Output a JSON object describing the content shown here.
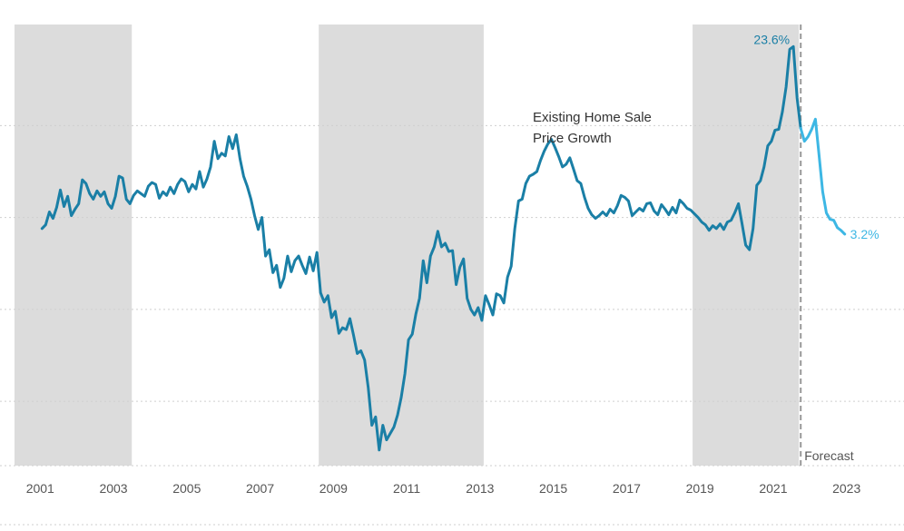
{
  "chart_data": {
    "type": "line",
    "title": "",
    "xlabel": "",
    "ylabel": "",
    "series_label_lines": [
      "Existing Home Sale",
      "Price Growth"
    ],
    "xlim": [
      2000.3,
      2023.8
    ],
    "ylim": [
      -22,
      26
    ],
    "y_gridlines": [
      -15,
      -5,
      5,
      15
    ],
    "x_ticks": [
      2001,
      2003,
      2005,
      2007,
      2009,
      2011,
      2013,
      2015,
      2017,
      2019,
      2021,
      2023
    ],
    "x_tick_labels": [
      "2001",
      "2003",
      "2005",
      "2007",
      "2009",
      "2011",
      "2013",
      "2015",
      "2017",
      "2019",
      "2021",
      "2023"
    ],
    "shaded_periods": [
      {
        "start": 2000.3,
        "end": 2003.5
      },
      {
        "start": 2008.6,
        "end": 2013.1
      },
      {
        "start": 2018.8,
        "end": 2021.7
      }
    ],
    "forecast_start": 2021.75,
    "forecast_label": "Forecast",
    "colors": {
      "actual": "#1a7fa6",
      "forecast": "#3db7e4",
      "shade": "#dcdcdc",
      "grid": "#cfcfcf",
      "forecast_line": "#999999"
    },
    "annotations": [
      {
        "text": "23.6%",
        "x": 2021.55,
        "y": 23.6,
        "color": "#1a7fa6"
      },
      {
        "text": "3.2%",
        "x": 2022.95,
        "y": 3.2,
        "color": "#3db7e4"
      }
    ],
    "series": [
      {
        "values": [
          [
            2001.05,
            3.8
          ],
          [
            2001.15,
            4.2
          ],
          [
            2001.25,
            5.6
          ],
          [
            2001.35,
            4.9
          ],
          [
            2001.45,
            6.1
          ],
          [
            2001.55,
            8.0
          ],
          [
            2001.65,
            6.2
          ],
          [
            2001.75,
            7.3
          ],
          [
            2001.85,
            5.2
          ],
          [
            2001.95,
            5.9
          ],
          [
            2002.05,
            6.5
          ],
          [
            2002.15,
            9.1
          ],
          [
            2002.25,
            8.7
          ],
          [
            2002.35,
            7.6
          ],
          [
            2002.45,
            7.0
          ],
          [
            2002.55,
            7.9
          ],
          [
            2002.65,
            7.3
          ],
          [
            2002.75,
            7.8
          ],
          [
            2002.85,
            6.5
          ],
          [
            2002.95,
            6.0
          ],
          [
            2003.05,
            7.3
          ],
          [
            2003.15,
            9.5
          ],
          [
            2003.25,
            9.3
          ],
          [
            2003.35,
            7.0
          ],
          [
            2003.45,
            6.5
          ],
          [
            2003.55,
            7.4
          ],
          [
            2003.65,
            7.9
          ],
          [
            2003.75,
            7.6
          ],
          [
            2003.85,
            7.3
          ],
          [
            2003.95,
            8.4
          ],
          [
            2004.05,
            8.8
          ],
          [
            2004.15,
            8.6
          ],
          [
            2004.25,
            7.1
          ],
          [
            2004.35,
            7.8
          ],
          [
            2004.45,
            7.4
          ],
          [
            2004.55,
            8.3
          ],
          [
            2004.65,
            7.6
          ],
          [
            2004.75,
            8.6
          ],
          [
            2004.85,
            9.2
          ],
          [
            2004.95,
            8.9
          ],
          [
            2005.05,
            7.8
          ],
          [
            2005.15,
            8.6
          ],
          [
            2005.25,
            8.1
          ],
          [
            2005.35,
            10.0
          ],
          [
            2005.45,
            8.3
          ],
          [
            2005.55,
            9.2
          ],
          [
            2005.65,
            10.5
          ],
          [
            2005.75,
            13.3
          ],
          [
            2005.85,
            11.4
          ],
          [
            2005.95,
            12.0
          ],
          [
            2006.05,
            11.7
          ],
          [
            2006.15,
            13.8
          ],
          [
            2006.25,
            12.5
          ],
          [
            2006.35,
            14.0
          ],
          [
            2006.45,
            11.4
          ],
          [
            2006.55,
            9.5
          ],
          [
            2006.65,
            8.4
          ],
          [
            2006.75,
            7.0
          ],
          [
            2006.85,
            5.2
          ],
          [
            2006.95,
            3.7
          ],
          [
            2007.05,
            5.0
          ],
          [
            2007.15,
            0.8
          ],
          [
            2007.25,
            1.5
          ],
          [
            2007.35,
            -1.0
          ],
          [
            2007.45,
            -0.2
          ],
          [
            2007.55,
            -2.6
          ],
          [
            2007.65,
            -1.6
          ],
          [
            2007.75,
            0.8
          ],
          [
            2007.85,
            -0.9
          ],
          [
            2007.95,
            0.3
          ],
          [
            2008.05,
            0.8
          ],
          [
            2008.15,
            -0.2
          ],
          [
            2008.25,
            -1.1
          ],
          [
            2008.35,
            0.7
          ],
          [
            2008.45,
            -0.8
          ],
          [
            2008.55,
            1.2
          ],
          [
            2008.65,
            -3.2
          ],
          [
            2008.75,
            -4.2
          ],
          [
            2008.85,
            -3.5
          ],
          [
            2008.95,
            -5.9
          ],
          [
            2009.05,
            -5.2
          ],
          [
            2009.15,
            -7.6
          ],
          [
            2009.25,
            -7.0
          ],
          [
            2009.35,
            -7.2
          ],
          [
            2009.45,
            -6.0
          ],
          [
            2009.55,
            -7.8
          ],
          [
            2009.65,
            -9.8
          ],
          [
            2009.75,
            -9.5
          ],
          [
            2009.85,
            -10.5
          ],
          [
            2009.95,
            -13.5
          ],
          [
            2010.05,
            -17.6
          ],
          [
            2010.15,
            -16.7
          ],
          [
            2010.25,
            -20.3
          ],
          [
            2010.35,
            -17.6
          ],
          [
            2010.45,
            -19.2
          ],
          [
            2010.55,
            -18.5
          ],
          [
            2010.65,
            -17.8
          ],
          [
            2010.75,
            -16.5
          ],
          [
            2010.85,
            -14.6
          ],
          [
            2010.95,
            -12.0
          ],
          [
            2011.05,
            -8.3
          ],
          [
            2011.15,
            -7.7
          ],
          [
            2011.25,
            -5.5
          ],
          [
            2011.35,
            -3.8
          ],
          [
            2011.45,
            0.3
          ],
          [
            2011.55,
            -2.1
          ],
          [
            2011.65,
            0.8
          ],
          [
            2011.75,
            1.8
          ],
          [
            2011.85,
            3.5
          ],
          [
            2011.95,
            1.8
          ],
          [
            2012.05,
            2.2
          ],
          [
            2012.15,
            1.3
          ],
          [
            2012.25,
            1.4
          ],
          [
            2012.35,
            -2.3
          ],
          [
            2012.45,
            -0.4
          ],
          [
            2012.55,
            0.5
          ],
          [
            2012.65,
            -3.8
          ],
          [
            2012.75,
            -5.0
          ],
          [
            2012.85,
            -5.6
          ],
          [
            2012.95,
            -4.8
          ],
          [
            2013.05,
            -6.2
          ],
          [
            2013.15,
            -3.5
          ],
          [
            2013.25,
            -4.5
          ],
          [
            2013.35,
            -5.6
          ],
          [
            2013.45,
            -3.3
          ],
          [
            2013.55,
            -3.5
          ],
          [
            2013.65,
            -4.3
          ],
          [
            2013.75,
            -1.5
          ],
          [
            2013.85,
            -0.3
          ],
          [
            2013.95,
            3.8
          ],
          [
            2014.05,
            6.8
          ],
          [
            2014.15,
            7.0
          ],
          [
            2014.25,
            8.7
          ],
          [
            2014.35,
            9.5
          ],
          [
            2014.45,
            9.7
          ],
          [
            2014.55,
            10.0
          ],
          [
            2014.65,
            11.2
          ],
          [
            2014.75,
            12.2
          ],
          [
            2014.85,
            13.0
          ],
          [
            2014.95,
            13.5
          ],
          [
            2015.05,
            12.6
          ],
          [
            2015.15,
            11.6
          ],
          [
            2015.25,
            10.5
          ],
          [
            2015.35,
            10.8
          ],
          [
            2015.45,
            11.5
          ],
          [
            2015.55,
            10.3
          ],
          [
            2015.65,
            9.0
          ],
          [
            2015.75,
            8.7
          ],
          [
            2015.85,
            7.2
          ],
          [
            2015.95,
            6.0
          ],
          [
            2016.05,
            5.3
          ],
          [
            2016.15,
            4.9
          ],
          [
            2016.25,
            5.2
          ],
          [
            2016.35,
            5.6
          ],
          [
            2016.45,
            5.2
          ],
          [
            2016.55,
            5.9
          ],
          [
            2016.65,
            5.5
          ],
          [
            2016.75,
            6.3
          ],
          [
            2016.85,
            7.4
          ],
          [
            2016.95,
            7.2
          ],
          [
            2017.05,
            6.8
          ],
          [
            2017.15,
            5.2
          ],
          [
            2017.25,
            5.6
          ],
          [
            2017.35,
            6.0
          ],
          [
            2017.45,
            5.7
          ],
          [
            2017.55,
            6.5
          ],
          [
            2017.65,
            6.6
          ],
          [
            2017.75,
            5.7
          ],
          [
            2017.85,
            5.3
          ],
          [
            2017.95,
            6.4
          ],
          [
            2018.05,
            5.9
          ],
          [
            2018.15,
            5.3
          ],
          [
            2018.25,
            6.1
          ],
          [
            2018.35,
            5.5
          ],
          [
            2018.45,
            6.9
          ],
          [
            2018.55,
            6.5
          ],
          [
            2018.65,
            6.0
          ],
          [
            2018.75,
            5.8
          ],
          [
            2018.85,
            5.4
          ],
          [
            2018.95,
            5.0
          ],
          [
            2019.05,
            4.5
          ],
          [
            2019.15,
            4.2
          ],
          [
            2019.25,
            3.6
          ],
          [
            2019.35,
            4.1
          ],
          [
            2019.45,
            3.8
          ],
          [
            2019.55,
            4.3
          ],
          [
            2019.65,
            3.7
          ],
          [
            2019.75,
            4.5
          ],
          [
            2019.85,
            4.7
          ],
          [
            2019.95,
            5.5
          ],
          [
            2020.05,
            6.5
          ],
          [
            2020.15,
            4.3
          ],
          [
            2020.25,
            2.0
          ],
          [
            2020.35,
            1.5
          ],
          [
            2020.45,
            3.8
          ],
          [
            2020.55,
            8.5
          ],
          [
            2020.65,
            9.0
          ],
          [
            2020.75,
            10.5
          ],
          [
            2020.85,
            12.8
          ],
          [
            2020.95,
            13.3
          ],
          [
            2021.05,
            14.5
          ],
          [
            2021.15,
            14.6
          ],
          [
            2021.25,
            16.5
          ],
          [
            2021.35,
            19.2
          ],
          [
            2021.45,
            23.3
          ],
          [
            2021.55,
            23.6
          ],
          [
            2021.65,
            18.0
          ],
          [
            2021.75,
            14.7
          ]
        ]
      },
      {
        "values": [
          [
            2021.75,
            14.7
          ],
          [
            2021.85,
            13.3
          ],
          [
            2021.95,
            13.8
          ],
          [
            2022.05,
            14.6
          ],
          [
            2022.15,
            15.7
          ],
          [
            2022.25,
            11.8
          ],
          [
            2022.35,
            7.8
          ],
          [
            2022.45,
            5.5
          ],
          [
            2022.55,
            4.8
          ],
          [
            2022.65,
            4.7
          ],
          [
            2022.75,
            3.9
          ],
          [
            2022.85,
            3.6
          ],
          [
            2022.95,
            3.2
          ]
        ]
      }
    ]
  }
}
